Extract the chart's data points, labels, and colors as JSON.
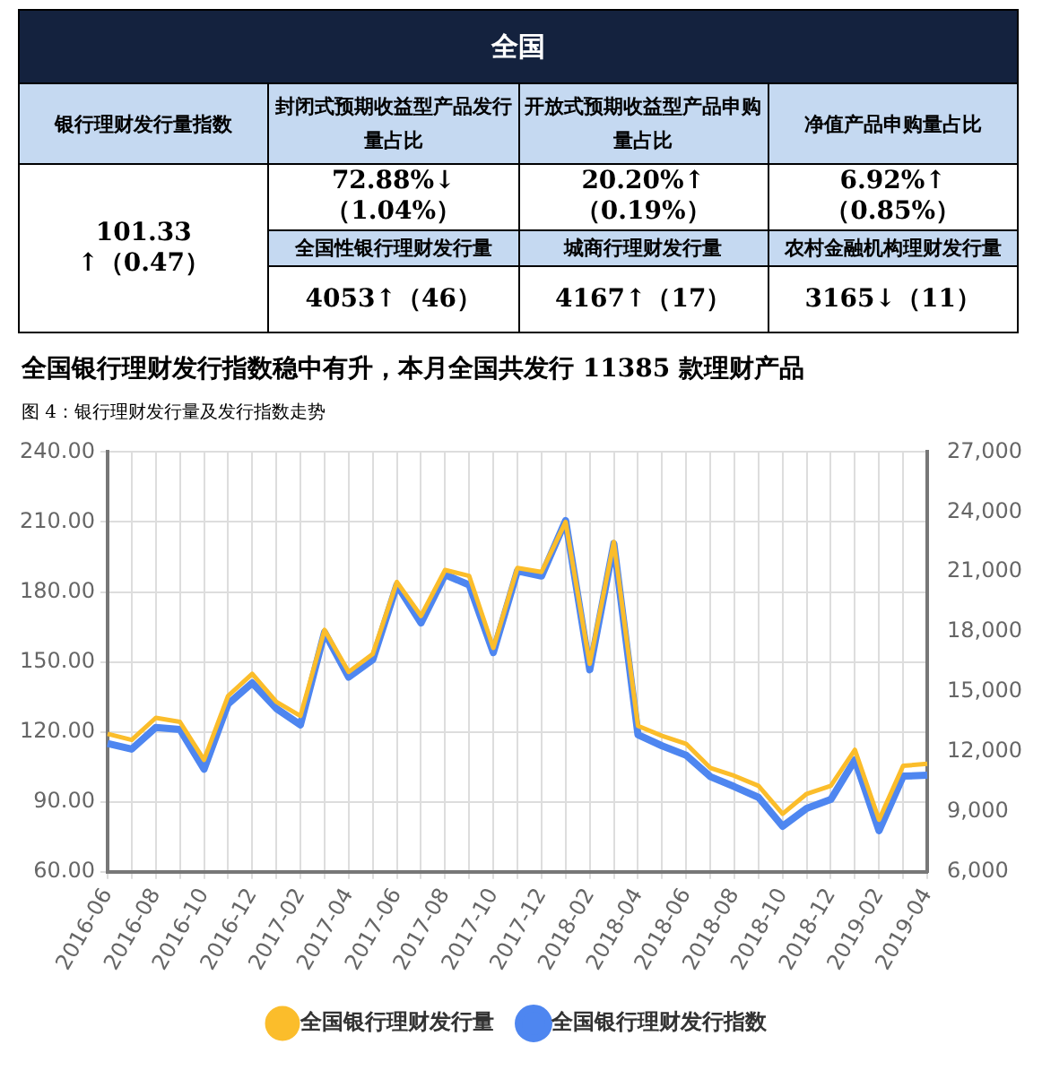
{
  "chart_data": [
    {
      "type": "other",
      "title": "全国",
      "annotations": [
        "银行理财发行量指数",
        "封闭式预期收益型产品发行量占比",
        "开放式预期收益型产品申购量占比",
        "净值产品申购量占比",
        "101.33\n↑（0.47）",
        "72.88%↓（1.04%）",
        "20.20%↑（0.19%）",
        "6.92%↑（0.85%）",
        "全国性银行理财发行量",
        "城商行理财发行量",
        "农村金融机构理财发行量",
        "4053↑（46）",
        "4167↑（17）",
        "3165↓（11）"
      ]
    },
    {
      "type": "line",
      "title": "全国银行理财发行指数稳中有升，本月全国共发行 11385 款理财产品",
      "subtitle": "图 4：银行理财发行量及发行指数走势",
      "categories": [
        "2016-06",
        null,
        "2016-08",
        null,
        "2016-10",
        null,
        "2016-12",
        null,
        "2017-02",
        null,
        "2017-04",
        null,
        "2017-06",
        null,
        "2017-08",
        null,
        "2017-10",
        null,
        "2017-12",
        null,
        "2018-02",
        null,
        "2018-04",
        null,
        "2018-06",
        null,
        "2018-08",
        null,
        "2018-10",
        null,
        "2018-12",
        null,
        "2019-02",
        null,
        "2019-04"
      ],
      "series": [
        {
          "name": "全国银行理财发行指数",
          "color": "#4e86f0",
          "values": [
            115,
            112.6,
            121.9,
            121,
            104,
            132,
            141,
            130,
            123,
            162.7,
            143.5,
            151,
            183,
            166.7,
            187.4,
            183,
            154,
            189,
            186.8,
            210.6,
            146.6,
            200.7,
            118.8,
            114,
            110,
            100.8,
            96.5,
            91.9,
            79.5,
            87.2,
            91,
            108,
            77.6,
            101,
            101.4
          ]
        },
        {
          "name": "全国银行理财发行量",
          "color": "#fbbd2b",
          "axis": "y2",
          "values": [
            12900,
            12600,
            13700,
            13500,
            11600,
            14800,
            15900,
            14500,
            13800,
            18100,
            16000,
            16900,
            20500,
            18800,
            21100,
            20800,
            17200,
            21200,
            21000,
            23500,
            16400,
            22500,
            13300,
            12800,
            12400,
            11200,
            10800,
            10300,
            8900,
            9900,
            10300,
            12100,
            8600,
            11300,
            11400
          ]
        }
      ],
      "ylim": [
        60,
        240
      ],
      "yticks": [
        {
          "value": 60,
          "label": "60.00"
        },
        {
          "value": 90,
          "label": "90.00"
        },
        {
          "value": 120,
          "label": "120.00"
        },
        {
          "value": 150,
          "label": "150.00"
        },
        {
          "value": 180,
          "label": "180.00"
        },
        {
          "value": 210,
          "label": "210.00"
        },
        {
          "value": 240,
          "label": "240.00"
        }
      ],
      "y2lim": [
        6000,
        27000
      ],
      "y2ticks": [
        {
          "value": 6000,
          "label": "6,000"
        },
        {
          "value": 9000,
          "label": "9,000"
        },
        {
          "value": 12000,
          "label": "12,000"
        },
        {
          "value": 15000,
          "label": "15,000"
        },
        {
          "value": 18000,
          "label": "18,000"
        },
        {
          "value": 21000,
          "label": "21,000"
        },
        {
          "value": 24000,
          "label": "24,000"
        },
        {
          "value": 27000,
          "label": "27,000"
        }
      ],
      "grid": true,
      "legend": "bottom",
      "marker": "none",
      "line_style": "solid"
    }
  ]
}
